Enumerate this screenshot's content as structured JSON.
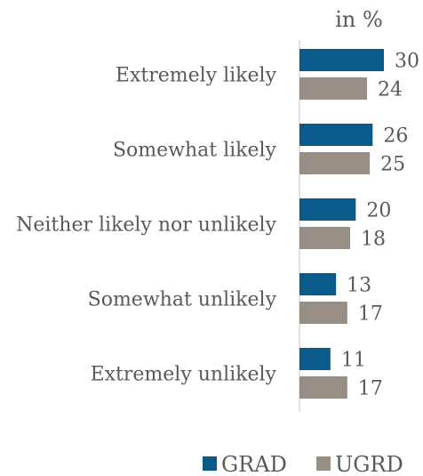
{
  "chart_data": {
    "type": "bar",
    "orientation": "horizontal",
    "unit_label": "in %",
    "categories": [
      "Extremely likely",
      "Somewhat likely",
      "Neither likely nor unlikely",
      "Somewhat unlikely",
      "Extremely unlikely"
    ],
    "series": [
      {
        "name": "GRAD",
        "color": "#0a5a8c",
        "values": [
          30,
          26,
          20,
          13,
          11
        ]
      },
      {
        "name": "UGRD",
        "color": "#978f85",
        "values": [
          24,
          25,
          18,
          17,
          17
        ]
      }
    ],
    "xlim": [
      0,
      35
    ],
    "grid": false,
    "legend_position": "bottom-right"
  }
}
